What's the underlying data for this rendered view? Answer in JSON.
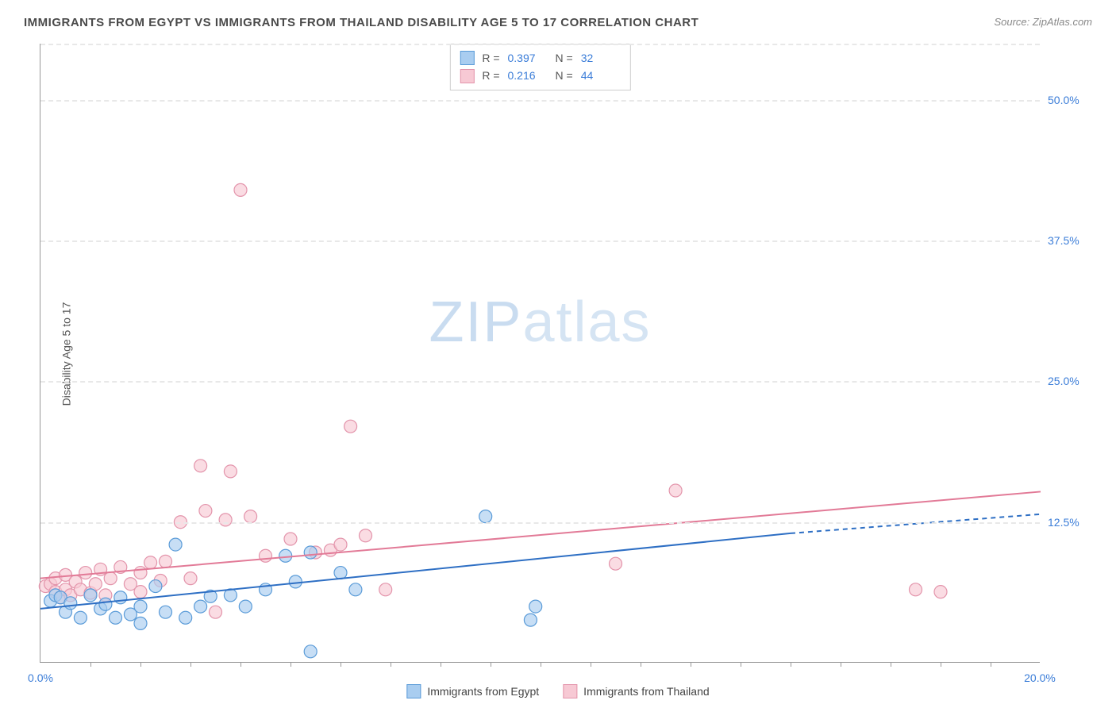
{
  "title": "IMMIGRANTS FROM EGYPT VS IMMIGRANTS FROM THAILAND DISABILITY AGE 5 TO 17 CORRELATION CHART",
  "source": "Source: ZipAtlas.com",
  "ylabel": "Disability Age 5 to 17",
  "watermark_a": "ZIP",
  "watermark_b": "atlas",
  "chart": {
    "type": "scatter-with-regression",
    "background_color": "#ffffff",
    "grid_color": "#e8e8e8",
    "axis_color": "#999999",
    "tick_label_color": "#3b7dd8",
    "xlim": [
      0,
      20
    ],
    "ylim": [
      0,
      55
    ],
    "y_gridlines": [
      12.5,
      25.0,
      37.5,
      50.0
    ],
    "y_tick_labels": [
      "12.5%",
      "25.0%",
      "37.5%",
      "50.0%"
    ],
    "x_tick_left": "0.0%",
    "x_tick_right": "20.0%",
    "x_minor_ticks": [
      1,
      2,
      3,
      4,
      5,
      6,
      7,
      8,
      9,
      10,
      11,
      12,
      13,
      14,
      15,
      16,
      17,
      18,
      19
    ],
    "marker_radius": 8,
    "marker_stroke_width": 1.2,
    "line_width": 2
  },
  "series": {
    "egypt": {
      "label": "Immigrants from Egypt",
      "fill": "#a9cdf0",
      "stroke": "#5a9bd8",
      "line_color": "#2e6fc4",
      "r": "0.397",
      "n": "32",
      "regression": {
        "x1": 0,
        "y1": 4.8,
        "x2": 15.0,
        "y2": 11.5,
        "dash_from_x": 15.0,
        "dash_to_x": 20.0,
        "dash_to_y": 13.2
      },
      "points": [
        [
          0.2,
          5.5
        ],
        [
          0.3,
          6.0
        ],
        [
          0.4,
          5.8
        ],
        [
          0.5,
          4.5
        ],
        [
          0.6,
          5.3
        ],
        [
          0.8,
          4.0
        ],
        [
          1.0,
          6.0
        ],
        [
          1.2,
          4.8
        ],
        [
          1.3,
          5.2
        ],
        [
          1.5,
          4.0
        ],
        [
          1.6,
          5.8
        ],
        [
          1.8,
          4.3
        ],
        [
          2.0,
          3.5
        ],
        [
          2.0,
          5.0
        ],
        [
          2.3,
          6.8
        ],
        [
          2.5,
          4.5
        ],
        [
          2.7,
          10.5
        ],
        [
          2.9,
          4.0
        ],
        [
          3.2,
          5.0
        ],
        [
          3.4,
          5.9
        ],
        [
          3.8,
          6.0
        ],
        [
          4.1,
          5.0
        ],
        [
          4.5,
          6.5
        ],
        [
          4.9,
          9.5
        ],
        [
          5.1,
          7.2
        ],
        [
          5.4,
          9.8
        ],
        [
          5.4,
          1.0
        ],
        [
          6.0,
          8.0
        ],
        [
          6.3,
          6.5
        ],
        [
          8.9,
          13.0
        ],
        [
          9.8,
          3.8
        ],
        [
          9.9,
          5.0
        ]
      ]
    },
    "thailand": {
      "label": "Immigrants from Thailand",
      "fill": "#f7c9d4",
      "stroke": "#e394ab",
      "line_color": "#e27a97",
      "r": "0.216",
      "n": "44",
      "regression": {
        "x1": 0,
        "y1": 7.5,
        "x2": 20.0,
        "y2": 15.2
      },
      "points": [
        [
          0.1,
          6.8
        ],
        [
          0.2,
          7.0
        ],
        [
          0.3,
          6.3
        ],
        [
          0.3,
          7.5
        ],
        [
          0.4,
          5.8
        ],
        [
          0.5,
          6.5
        ],
        [
          0.5,
          7.8
        ],
        [
          0.6,
          6.0
        ],
        [
          0.7,
          7.2
        ],
        [
          0.8,
          6.5
        ],
        [
          0.9,
          8.0
        ],
        [
          1.0,
          6.2
        ],
        [
          1.1,
          7.0
        ],
        [
          1.2,
          8.3
        ],
        [
          1.3,
          6.0
        ],
        [
          1.4,
          7.5
        ],
        [
          1.6,
          8.5
        ],
        [
          1.8,
          7.0
        ],
        [
          2.0,
          6.3
        ],
        [
          2.0,
          8.0
        ],
        [
          2.2,
          8.9
        ],
        [
          2.4,
          7.3
        ],
        [
          2.5,
          9.0
        ],
        [
          2.8,
          12.5
        ],
        [
          3.0,
          7.5
        ],
        [
          3.2,
          17.5
        ],
        [
          3.3,
          13.5
        ],
        [
          3.5,
          4.5
        ],
        [
          3.7,
          12.7
        ],
        [
          3.8,
          17.0
        ],
        [
          4.0,
          42.0
        ],
        [
          4.2,
          13.0
        ],
        [
          4.5,
          9.5
        ],
        [
          5.0,
          11.0
        ],
        [
          5.5,
          9.8
        ],
        [
          5.8,
          10.0
        ],
        [
          6.0,
          10.5
        ],
        [
          6.2,
          21.0
        ],
        [
          6.5,
          11.3
        ],
        [
          6.9,
          6.5
        ],
        [
          11.5,
          8.8
        ],
        [
          12.7,
          15.3
        ],
        [
          17.5,
          6.5
        ],
        [
          18.0,
          6.3
        ]
      ]
    }
  },
  "legend_box": {
    "r_label": "R =",
    "n_label": "N ="
  }
}
